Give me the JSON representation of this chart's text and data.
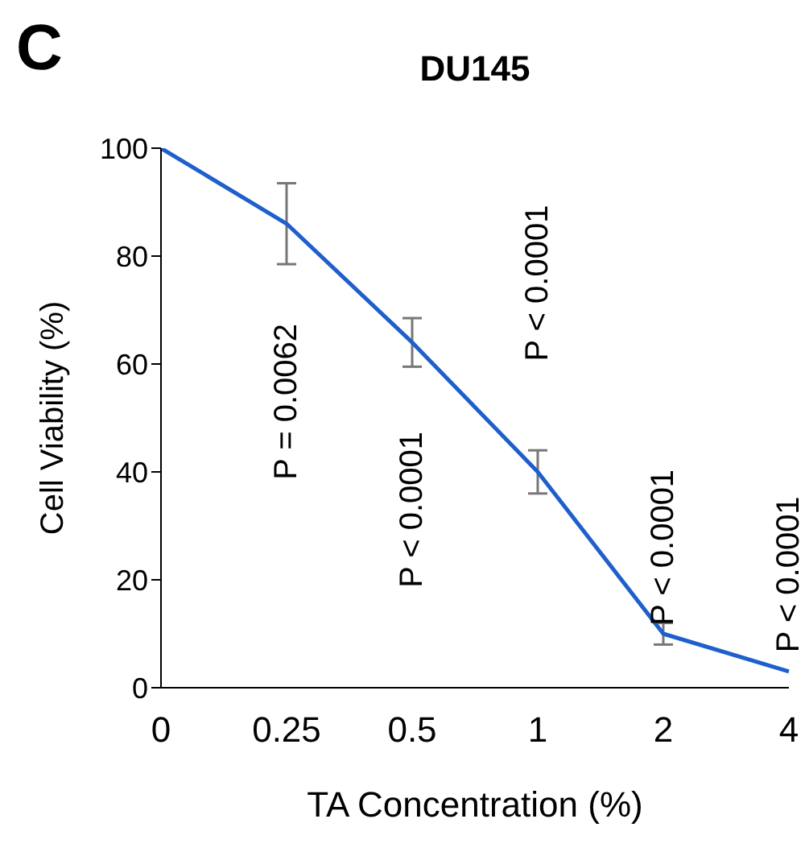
{
  "chart_data": {
    "type": "line",
    "title": "DU145",
    "xlabel": "TA Concentration (%)",
    "ylabel": "Cell Viability (%)",
    "categories": [
      "0",
      "0.25",
      "0.5",
      "1",
      "2",
      "4"
    ],
    "series": [
      {
        "color": "#1f5fcc",
        "values": [
          100,
          86,
          64,
          40,
          10,
          3
        ],
        "errors": [
          null,
          7.5,
          4.5,
          4,
          2,
          null
        ]
      }
    ],
    "ylim": [
      0,
      100
    ],
    "yticks": [
      0,
      20,
      40,
      60,
      80,
      100
    ],
    "grid": false,
    "legend": false,
    "marker": "none",
    "line_style": "solid",
    "annotations": [
      "C",
      "P = 0.0062",
      "P < 0.0001",
      "P < 0.0001",
      "P < 0.0001",
      "P < 0.0001"
    ]
  }
}
